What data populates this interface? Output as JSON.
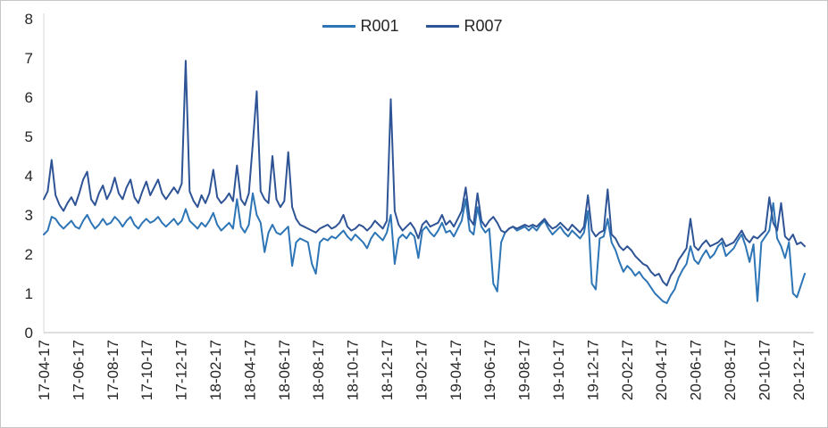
{
  "window": {
    "background_color": "#FFFFFF",
    "border_color": "#C6C6C6"
  },
  "axes": {
    "y_axis_line_color": "#D9D9D9",
    "x_axis_line_color": "#BFBFBF",
    "tick_label_color": "#262626"
  },
  "chart_data": {
    "type": "line",
    "title": "",
    "xlabel": "",
    "ylabel": "",
    "ylim": [
      0,
      8
    ],
    "y_ticks": [
      0,
      1,
      2,
      3,
      4,
      5,
      6,
      7,
      8
    ],
    "grid": false,
    "legend_position": "top-center",
    "x_tick_rotation": -90,
    "x_tick_labels": [
      "17-04-17",
      "17-06-17",
      "17-08-17",
      "17-10-17",
      "17-12-17",
      "18-02-17",
      "18-04-17",
      "18-06-17",
      "18-08-17",
      "18-10-17",
      "18-12-17",
      "19-02-17",
      "19-04-17",
      "19-06-17",
      "19-08-17",
      "19-10-17",
      "19-12-17",
      "20-02-17",
      "20-04-17",
      "20-06-17",
      "20-08-17",
      "20-10-17",
      "20-12-17"
    ],
    "series": [
      {
        "name": "R001",
        "color": "#2E75B6",
        "values": [
          2.5,
          2.6,
          2.95,
          2.9,
          2.75,
          2.65,
          2.75,
          2.85,
          2.7,
          2.65,
          2.85,
          3.0,
          2.8,
          2.65,
          2.75,
          2.9,
          2.75,
          2.8,
          2.95,
          2.85,
          2.7,
          2.85,
          2.95,
          2.75,
          2.65,
          2.8,
          2.9,
          2.8,
          2.85,
          2.95,
          2.8,
          2.7,
          2.8,
          2.9,
          2.75,
          2.85,
          3.15,
          2.85,
          2.75,
          2.65,
          2.8,
          2.7,
          2.85,
          3.05,
          2.75,
          2.6,
          2.7,
          2.8,
          2.65,
          3.4,
          2.7,
          2.55,
          2.75,
          3.55,
          3.0,
          2.8,
          2.05,
          2.55,
          2.75,
          2.55,
          2.5,
          2.6,
          2.7,
          1.7,
          2.3,
          2.4,
          2.35,
          2.3,
          1.75,
          1.5,
          2.3,
          2.4,
          2.35,
          2.45,
          2.4,
          2.5,
          2.6,
          2.45,
          2.35,
          2.5,
          2.4,
          2.3,
          2.15,
          2.4,
          2.55,
          2.45,
          2.35,
          2.55,
          3.0,
          1.75,
          2.4,
          2.5,
          2.4,
          2.55,
          2.45,
          1.9,
          2.6,
          2.7,
          2.55,
          2.45,
          2.6,
          2.8,
          2.55,
          2.6,
          2.45,
          2.65,
          2.85,
          3.4,
          2.6,
          2.5,
          3.2,
          2.7,
          2.55,
          2.65,
          1.25,
          1.05,
          2.3,
          2.55,
          2.65,
          2.7,
          2.6,
          2.65,
          2.7,
          2.6,
          2.7,
          2.6,
          2.75,
          2.85,
          2.65,
          2.5,
          2.6,
          2.7,
          2.55,
          2.45,
          2.6,
          2.5,
          2.4,
          2.55,
          3.1,
          1.25,
          1.1,
          2.4,
          2.45,
          2.9,
          2.3,
          2.1,
          1.8,
          1.55,
          1.7,
          1.6,
          1.45,
          1.55,
          1.4,
          1.3,
          1.15,
          1.0,
          0.9,
          0.8,
          0.75,
          0.95,
          1.1,
          1.4,
          1.6,
          1.75,
          2.2,
          1.85,
          1.75,
          1.95,
          2.1,
          1.9,
          2.0,
          2.2,
          2.3,
          1.95,
          2.05,
          2.15,
          2.35,
          2.5,
          2.2,
          1.8,
          2.25,
          0.8,
          2.3,
          2.45,
          2.6,
          3.3,
          2.4,
          2.2,
          1.9,
          2.3,
          1.0,
          0.9,
          1.2,
          1.5
        ]
      },
      {
        "name": "R007",
        "color": "#2F5496",
        "values": [
          3.4,
          3.6,
          4.4,
          3.5,
          3.25,
          3.1,
          3.3,
          3.45,
          3.25,
          3.55,
          3.9,
          4.1,
          3.4,
          3.25,
          3.55,
          3.75,
          3.4,
          3.6,
          3.95,
          3.55,
          3.4,
          3.7,
          3.9,
          3.45,
          3.3,
          3.6,
          3.85,
          3.5,
          3.7,
          3.9,
          3.55,
          3.4,
          3.55,
          3.7,
          3.55,
          3.8,
          6.93,
          3.6,
          3.35,
          3.2,
          3.5,
          3.3,
          3.55,
          4.15,
          3.45,
          3.3,
          3.4,
          3.55,
          3.35,
          4.26,
          3.4,
          3.25,
          3.55,
          4.8,
          6.15,
          3.6,
          3.4,
          3.3,
          4.5,
          3.4,
          3.2,
          3.35,
          4.6,
          3.2,
          2.9,
          2.75,
          2.7,
          2.65,
          2.6,
          2.55,
          2.65,
          2.7,
          2.75,
          2.65,
          2.7,
          2.8,
          3.0,
          2.7,
          2.6,
          2.65,
          2.75,
          2.7,
          2.6,
          2.7,
          2.85,
          2.75,
          2.65,
          2.85,
          5.95,
          3.1,
          2.75,
          2.6,
          2.7,
          2.8,
          2.65,
          2.4,
          2.75,
          2.85,
          2.7,
          2.75,
          2.8,
          3.0,
          2.75,
          2.85,
          2.7,
          2.9,
          3.1,
          3.7,
          2.9,
          2.75,
          3.55,
          2.85,
          2.7,
          2.85,
          2.95,
          2.8,
          2.6,
          2.55,
          2.65,
          2.7,
          2.65,
          2.7,
          2.75,
          2.7,
          2.75,
          2.7,
          2.8,
          2.9,
          2.75,
          2.65,
          2.7,
          2.8,
          2.7,
          2.6,
          2.75,
          2.65,
          2.55,
          2.7,
          3.5,
          2.6,
          2.45,
          2.55,
          2.6,
          3.65,
          2.5,
          2.4,
          2.2,
          2.1,
          2.2,
          2.1,
          1.95,
          1.85,
          1.75,
          1.7,
          1.55,
          1.45,
          1.5,
          1.3,
          1.2,
          1.45,
          1.6,
          1.85,
          2.0,
          2.15,
          2.9,
          2.2,
          2.1,
          2.25,
          2.35,
          2.2,
          2.25,
          2.3,
          2.4,
          2.2,
          2.25,
          2.3,
          2.45,
          2.6,
          2.4,
          2.3,
          2.45,
          2.4,
          2.5,
          2.6,
          3.45,
          2.8,
          2.6,
          3.3,
          2.45,
          2.35,
          2.5,
          2.25,
          2.3,
          2.2
        ]
      }
    ]
  }
}
